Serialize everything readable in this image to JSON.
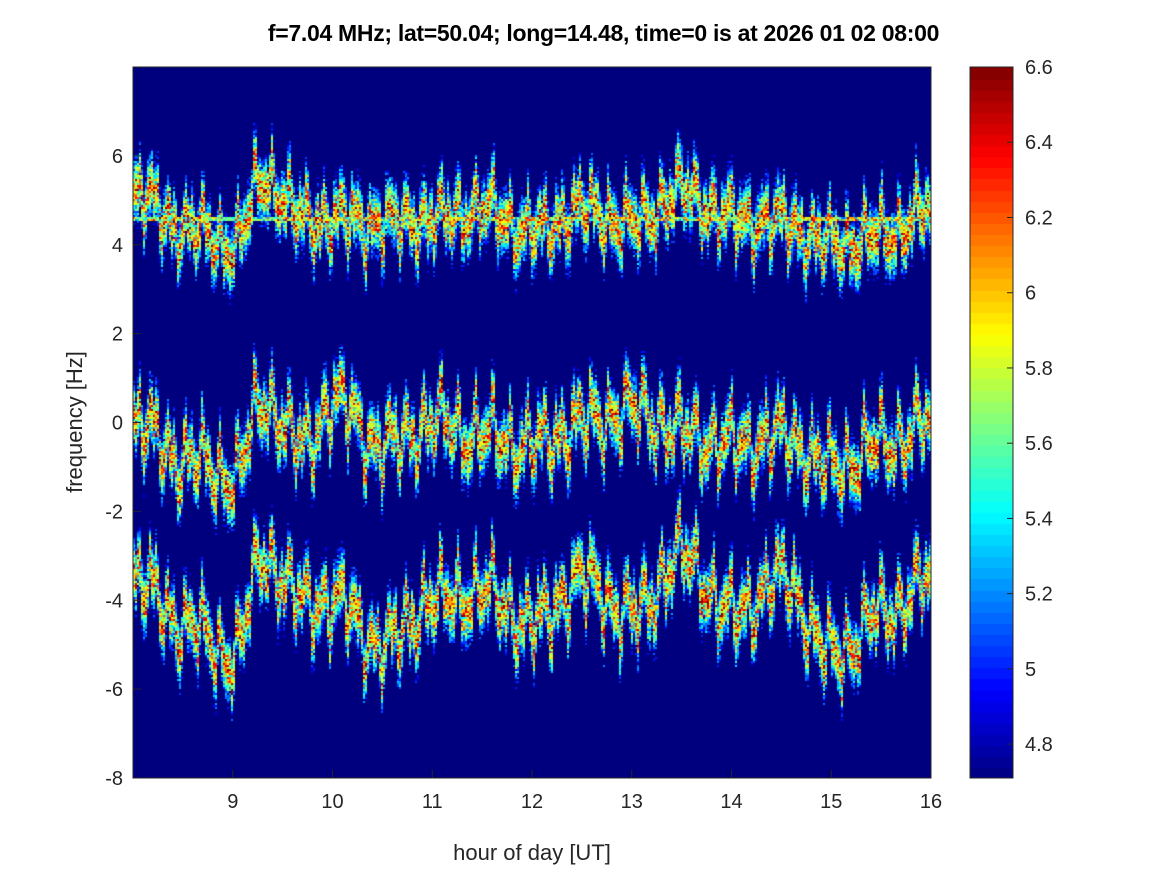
{
  "chart_data": {
    "type": "heatmap",
    "title": "f=7.04 MHz;  lat=50.04; long=14.48, time=0 is at 2026 01 02 08:00",
    "xlabel": "hour of day [UT]",
    "ylabel": "frequency [Hz]",
    "xlim": [
      8,
      16
    ],
    "ylim": [
      -8,
      8
    ],
    "xticks": [
      9,
      10,
      11,
      12,
      13,
      14,
      15,
      16
    ],
    "yticks": [
      -8,
      -6,
      -4,
      -2,
      0,
      2,
      4,
      6
    ],
    "colorbar": {
      "colormap": "jet",
      "clim": [
        4.71,
        6.6
      ],
      "ticks": [
        4.8,
        5,
        5.2,
        5.4,
        5.6,
        5.8,
        6,
        6.2,
        6.4,
        6.6
      ]
    },
    "background_value": 4.71,
    "constant_line_freq": 4.6,
    "traces": [
      {
        "name": "upper band",
        "hours": [
          8,
          8.5,
          9,
          9.3,
          9.7,
          10,
          10.5,
          11,
          11.5,
          12,
          12.5,
          13,
          13.5,
          14,
          14.5,
          15,
          15.5,
          16
        ],
        "freq": [
          5.2,
          4.4,
          4.0,
          5.5,
          4.6,
          4.6,
          4.5,
          4.6,
          4.8,
          4.3,
          4.8,
          4.5,
          5.2,
          4.6,
          4.5,
          4.0,
          4.2,
          4.8
        ]
      },
      {
        "name": "middle band",
        "hours": [
          8,
          8.5,
          9,
          9.3,
          9.7,
          10,
          10.5,
          11,
          11.5,
          12,
          12.5,
          13,
          13.5,
          14,
          14.5,
          15,
          15.5,
          16
        ],
        "freq": [
          0,
          -0.8,
          -1.2,
          0.5,
          -0.5,
          0.5,
          -0.5,
          0,
          -0.3,
          -0.5,
          0,
          0.3,
          -0.2,
          -0.5,
          -0.3,
          -1,
          -0.5,
          0
        ]
      },
      {
        "name": "lower band",
        "hours": [
          8,
          8.5,
          9,
          9.3,
          9.7,
          10,
          10.5,
          11,
          11.5,
          12,
          12.5,
          13,
          13.5,
          14,
          14.5,
          15,
          15.5,
          16
        ],
        "freq": [
          -3.5,
          -4.5,
          -5.2,
          -3,
          -4,
          -4,
          -5,
          -4,
          -3.8,
          -4.5,
          -3.5,
          -4.3,
          -3,
          -4.3,
          -3.5,
          -5.2,
          -4.3,
          -3.5
        ]
      }
    ]
  }
}
